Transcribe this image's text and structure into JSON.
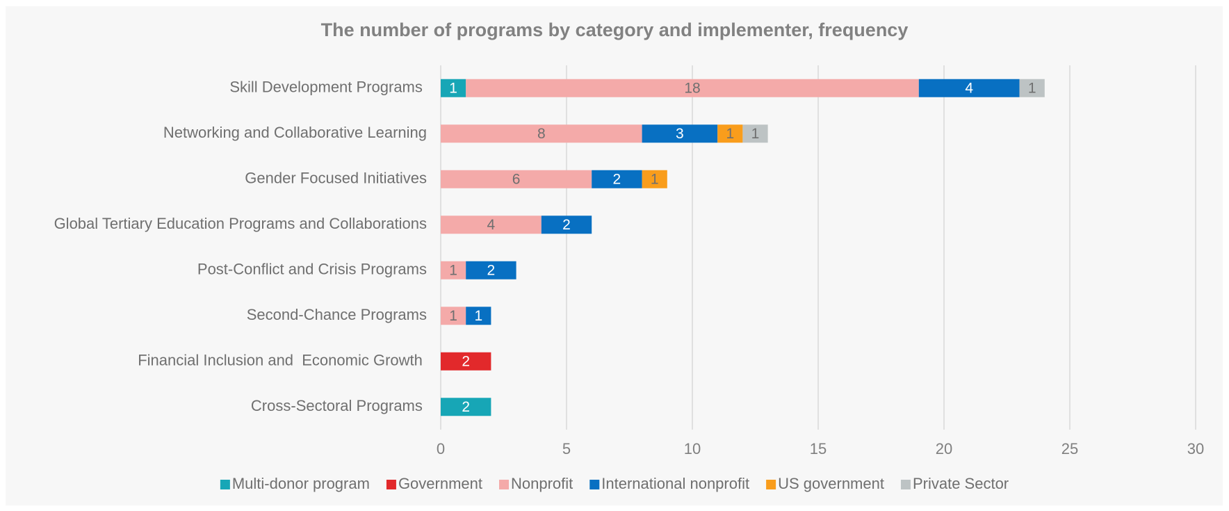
{
  "chart_data": {
    "type": "stacked-barh",
    "title": "The number of programs by category and implementer, frequency",
    "categories": [
      "Skill Development Programs ",
      "Networking and Collaborative Learning",
      "Gender Focused Initiatives",
      "Global Tertiary Education Programs and Collaborations",
      "Post-Conflict and Crisis Programs",
      "Second-Chance Programs",
      "Financial Inclusion and  Economic Growth ",
      "Cross-Sectoral Programs "
    ],
    "series": [
      {
        "name": "Multi-donor program",
        "color": "#17a6b6",
        "label_color": "#ffffff",
        "values": [
          1,
          null,
          null,
          null,
          null,
          null,
          null,
          2
        ]
      },
      {
        "name": "Government",
        "color": "#e2292b",
        "label_color": "#ffffff",
        "values": [
          null,
          null,
          null,
          null,
          null,
          null,
          2,
          null
        ]
      },
      {
        "name": "Nonprofit",
        "color": "#f4aaa9",
        "label_color": "#6f6f6f",
        "values": [
          18,
          8,
          6,
          4,
          1,
          1,
          null,
          null
        ]
      },
      {
        "name": "International nonprofit",
        "color": "#0870c2",
        "label_color": "#ffffff",
        "values": [
          4,
          3,
          2,
          2,
          2,
          1,
          null,
          null
        ]
      },
      {
        "name": "US government",
        "color": "#f99d1c",
        "label_color": "#6f6f6f",
        "values": [
          null,
          1,
          1,
          null,
          null,
          null,
          null,
          null
        ]
      },
      {
        "name": "Private Sector",
        "color": "#bdc3c4",
        "label_color": "#6f6f6f",
        "values": [
          1,
          1,
          null,
          null,
          null,
          null,
          null,
          null
        ]
      }
    ],
    "xlim": [
      0,
      30
    ],
    "xticks": [
      0,
      5,
      10,
      15,
      20,
      25,
      30
    ],
    "grid": true,
    "legend": "bottom"
  }
}
